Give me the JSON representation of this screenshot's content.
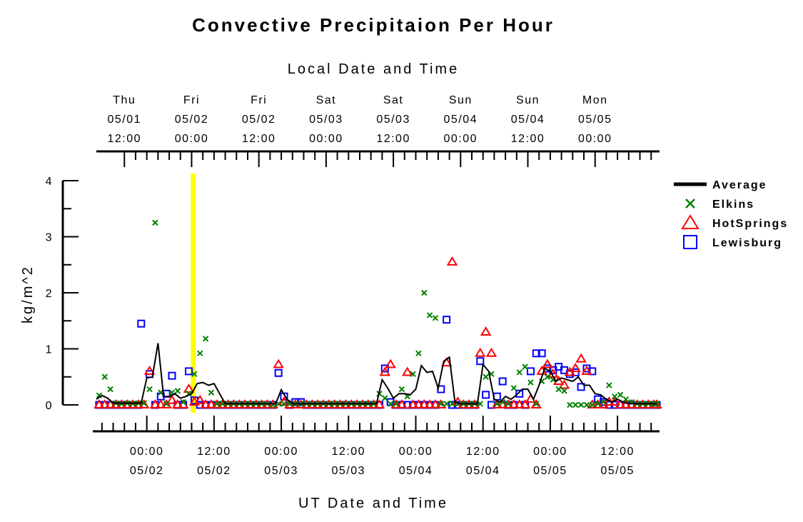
{
  "chart_data": {
    "type": "line",
    "title": "Convective Precipitaion Per Hour",
    "top_axis_title": "Local Date and Time",
    "top_ticks": [
      {
        "day": "Thu",
        "date": "05/01",
        "time": "12:00",
        "hours": -4
      },
      {
        "day": "Fri",
        "date": "05/02",
        "time": "00:00",
        "hours": 8
      },
      {
        "day": "Fri",
        "date": "05/02",
        "time": "12:00",
        "hours": 20
      },
      {
        "day": "Sat",
        "date": "05/03",
        "time": "00:00",
        "hours": 32
      },
      {
        "day": "Sat",
        "date": "05/03",
        "time": "12:00",
        "hours": 44
      },
      {
        "day": "Sun",
        "date": "05/04",
        "time": "00:00",
        "hours": 56
      },
      {
        "day": "Sun",
        "date": "05/04",
        "time": "12:00",
        "hours": 68
      },
      {
        "day": "Mon",
        "date": "05/05",
        "time": "00:00",
        "hours": 80
      }
    ],
    "bottom_axis_title": "UT Date and Time",
    "bottom_ticks": [
      {
        "time": "00:00",
        "date": "05/02",
        "hours": 0
      },
      {
        "time": "12:00",
        "date": "05/02",
        "hours": 12
      },
      {
        "time": "00:00",
        "date": "05/03",
        "hours": 24
      },
      {
        "time": "12:00",
        "date": "05/03",
        "hours": 36
      },
      {
        "time": "00:00",
        "date": "05/04",
        "hours": 48
      },
      {
        "time": "12:00",
        "date": "05/04",
        "hours": 60
      },
      {
        "time": "00:00",
        "date": "05/05",
        "hours": 72
      },
      {
        "time": "12:00",
        "date": "05/05",
        "hours": 84
      }
    ],
    "x_unit": "hours since 05/02 00:00 UT",
    "xlim": [
      -9,
      91.5
    ],
    "ylabel": "kg/m^2",
    "ylim": [
      0,
      4
    ],
    "y_ticks": [
      0,
      1,
      2,
      3,
      4
    ],
    "highlight_x": 8.3,
    "highlight_color": "#ffff00",
    "legend_position": "right",
    "series": [
      {
        "name": "Average",
        "marker": "line",
        "color": "#000000",
        "x": [
          -9,
          -8,
          -7,
          -6,
          -5,
          -4,
          -3,
          -2,
          -1,
          0,
          1,
          2,
          3,
          4,
          5,
          6,
          7,
          8,
          9,
          10,
          11,
          12,
          13,
          14,
          15,
          16,
          17,
          18,
          19,
          20,
          21,
          22,
          23,
          24,
          25,
          26,
          27,
          28,
          29,
          30,
          31,
          32,
          33,
          34,
          35,
          36,
          37,
          38,
          39,
          40,
          41,
          42,
          43,
          44,
          45,
          46,
          47,
          48,
          49,
          50,
          51,
          52,
          53,
          54,
          55,
          56,
          57,
          58,
          59,
          60,
          61,
          62,
          63,
          64,
          65,
          66,
          67,
          68,
          69,
          70,
          71,
          72,
          73,
          74,
          75,
          76,
          77,
          78,
          79,
          80,
          81,
          82,
          83,
          84,
          85,
          86,
          87,
          88,
          89,
          90,
          91
        ],
        "values": [
          0.1,
          0.17,
          0.12,
          0.03,
          0.03,
          0.03,
          0.03,
          0.03,
          0.03,
          0.48,
          0.5,
          1.1,
          0.15,
          0.15,
          0.2,
          0.12,
          0.15,
          0.2,
          0.38,
          0.4,
          0.35,
          0.38,
          0.2,
          0.02,
          0.02,
          0.02,
          0.02,
          0.02,
          0.02,
          0.02,
          0.02,
          0.02,
          0.02,
          0.27,
          0.1,
          0.02,
          0.02,
          0.02,
          0.02,
          0.02,
          0.02,
          0.02,
          0.02,
          0.02,
          0.02,
          0.02,
          0.02,
          0.02,
          0.02,
          0.02,
          0.02,
          0.45,
          0.3,
          0.12,
          0.2,
          0.2,
          0.18,
          0.28,
          0.7,
          0.58,
          0.6,
          0.3,
          0.78,
          0.85,
          0.05,
          0.02,
          0.02,
          0.02,
          0.02,
          0.72,
          0.6,
          0.1,
          0.05,
          0.15,
          0.1,
          0.18,
          0.28,
          0.28,
          0.1,
          0.35,
          0.65,
          0.6,
          0.42,
          0.48,
          0.45,
          0.42,
          0.5,
          0.35,
          0.35,
          0.2,
          0.18,
          0.1,
          0.05,
          0.1,
          0.05,
          0.02,
          0.02,
          0.02,
          0.02,
          0.02,
          0.02
        ]
      },
      {
        "name": "Elkins",
        "marker": "x",
        "color": "#008000",
        "x": [
          -8.5,
          -7.5,
          -6.5,
          -5.5,
          -4.5,
          -3.5,
          -2.5,
          -1.5,
          -0.5,
          0.5,
          1.5,
          2.5,
          3.5,
          4.5,
          5.5,
          6.5,
          7.5,
          8.5,
          9.5,
          10.5,
          11.5,
          12.5,
          13.5,
          14.5,
          15.5,
          16.5,
          17.5,
          18.5,
          19.5,
          20.5,
          21.5,
          22.5,
          23.5,
          24.5,
          25.5,
          26.5,
          27.5,
          28.5,
          29.5,
          30.5,
          31.5,
          32.5,
          33.5,
          34.5,
          35.5,
          36.5,
          37.5,
          38.5,
          39.5,
          40.5,
          41.5,
          42.5,
          43.5,
          44.5,
          45.5,
          46.5,
          47.5,
          48.5,
          49.5,
          50.5,
          51.5,
          52.5,
          53.5,
          54.5,
          55.5,
          56.5,
          57.5,
          58.5,
          59.5,
          60.5,
          61.5,
          62.5,
          63.5,
          64.5,
          65.5,
          66.5,
          67.5,
          68.5,
          69.5,
          70.5,
          71.5,
          72.5,
          73.5,
          74.5,
          75.5,
          76.5,
          77.5,
          78.5,
          79.5,
          80.5,
          81.5,
          82.5,
          83.5,
          84.5,
          85.5,
          86.5,
          87.5,
          88.5,
          89.5,
          90.5,
          91
        ],
        "values": [
          0.17,
          0.5,
          0.28,
          0.03,
          0.02,
          0.03,
          0.02,
          0.03,
          0.03,
          0.28,
          3.25,
          0.22,
          0.02,
          0.22,
          0.25,
          0.05,
          0.2,
          0.55,
          0.92,
          1.18,
          0.22,
          0.02,
          0.02,
          0.02,
          0.02,
          0.02,
          0.02,
          0.02,
          0.02,
          0.02,
          0.02,
          0.0,
          0.02,
          0.02,
          0.02,
          0.02,
          0.02,
          0.02,
          0.02,
          0.02,
          0.02,
          0.02,
          0.02,
          0.02,
          0.02,
          0.02,
          0.02,
          0.02,
          0.02,
          0.02,
          0.2,
          0.12,
          0.02,
          0.02,
          0.28,
          0.15,
          0.55,
          0.92,
          2.0,
          1.6,
          1.55,
          0.02,
          0.02,
          0.02,
          0.02,
          0.02,
          0.02,
          0.02,
          0.02,
          0.5,
          0.55,
          0.02,
          0.05,
          0.02,
          0.3,
          0.58,
          0.68,
          0.4,
          0.02,
          0.42,
          0.5,
          0.45,
          0.28,
          0.25,
          0.0,
          0.0,
          0.0,
          0.0,
          0.0,
          0.02,
          0.05,
          0.35,
          0.15,
          0.18,
          0.1,
          0.05,
          0.02,
          0.02,
          0.02,
          0.02,
          0.02
        ]
      },
      {
        "name": "HotSprings",
        "marker": "triangle",
        "color": "#ff0000",
        "x": [
          -8.5,
          -7.5,
          -6.5,
          -5.5,
          -4.5,
          -3.5,
          -2.5,
          -1.5,
          -0.5,
          0.5,
          1.5,
          2.5,
          3.5,
          4.5,
          5.5,
          6.5,
          7.5,
          8.5,
          9.5,
          10.5,
          11.5,
          12.5,
          13.5,
          14.5,
          15.5,
          16.5,
          17.5,
          18.5,
          19.5,
          20.5,
          21.5,
          22.5,
          23.5,
          24.5,
          25.5,
          26.5,
          27.5,
          28.5,
          29.5,
          30.5,
          31.5,
          32.5,
          33.5,
          34.5,
          35.5,
          36.5,
          37.5,
          38.5,
          39.5,
          40.5,
          41.5,
          42.5,
          43.5,
          44.5,
          45.5,
          46.5,
          47.5,
          48.5,
          49.5,
          50.5,
          51.5,
          52.5,
          53.5,
          54.5,
          55.5,
          56.5,
          57.5,
          58.5,
          59.5,
          60.5,
          61.5,
          62.5,
          63.5,
          64.5,
          65.5,
          66.5,
          67.5,
          68.5,
          69.5,
          70.5,
          71.5,
          72.5,
          73.5,
          74.5,
          75.5,
          76.5,
          77.5,
          78.5,
          79.5,
          80.5,
          81.5,
          82.5,
          83.5,
          84.5,
          85.5,
          86.5,
          87.5,
          88.5,
          89.5,
          90.5,
          91
        ],
        "values": [
          0.0,
          0.0,
          0.0,
          0.0,
          0.0,
          0.0,
          0.0,
          0.0,
          0.0,
          0.6,
          0.0,
          0.0,
          0.0,
          0.08,
          0.0,
          0.0,
          0.28,
          0.05,
          0.08,
          0.0,
          0.0,
          0.0,
          0.0,
          0.0,
          0.0,
          0.0,
          0.0,
          0.0,
          0.0,
          0.0,
          0.0,
          0.0,
          0.72,
          0.05,
          0.0,
          0.0,
          0.0,
          0.0,
          0.0,
          0.0,
          0.0,
          0.0,
          0.0,
          0.0,
          0.0,
          0.0,
          0.0,
          0.0,
          0.0,
          0.0,
          0.0,
          0.58,
          0.72,
          0.0,
          0.0,
          0.58,
          0.0,
          0.0,
          0.0,
          0.0,
          0.0,
          0.0,
          0.75,
          2.55,
          0.05,
          0.0,
          0.0,
          0.0,
          0.92,
          1.3,
          0.92,
          0.0,
          0.0,
          0.0,
          0.0,
          0.0,
          0.0,
          0.1,
          0.0,
          0.6,
          0.72,
          0.55,
          0.42,
          0.35,
          0.58,
          0.65,
          0.82,
          0.6,
          0.0,
          0.0,
          0.0,
          0.05,
          0.05,
          0.0,
          0.0,
          0.0,
          0.0,
          0.0,
          0.0,
          0.0,
          0.0
        ]
      },
      {
        "name": "Lewisburg",
        "marker": "square",
        "color": "#0000ff",
        "x": [
          -8.5,
          -7.5,
          -6.5,
          -5.5,
          -4.5,
          -3.5,
          -2.5,
          -1.5,
          -1,
          0.5,
          1.5,
          2.5,
          3.5,
          4.5,
          5.5,
          6.5,
          7.5,
          8.5,
          9.5,
          10.5,
          11.5,
          12.5,
          13.5,
          14.5,
          15.5,
          16.5,
          17.5,
          18.5,
          19.5,
          20.5,
          21.5,
          22.5,
          23.5,
          24.5,
          25.5,
          26.5,
          27.5,
          28.5,
          29.5,
          30.5,
          31.5,
          32.5,
          33.5,
          34.5,
          35.5,
          36.5,
          37.5,
          38.5,
          39.5,
          40.5,
          41.5,
          42.5,
          43.5,
          44.5,
          45.5,
          46.5,
          47.5,
          48.5,
          49.5,
          50.5,
          51.5,
          52.5,
          53.5,
          54.5,
          55.5,
          56.5,
          57.5,
          58.5,
          59.5,
          60.5,
          61.5,
          62.5,
          63.5,
          64.5,
          65.5,
          66.5,
          67.5,
          68.5,
          69.5,
          70.5,
          71.5,
          72.5,
          73.5,
          74.5,
          75.5,
          76.5,
          77.5,
          78.5,
          79.5,
          80.5,
          81.5,
          82.5,
          83.5,
          84.5,
          85.5,
          86.5,
          87.5,
          88.5,
          89.5,
          90.5,
          91
        ],
        "values": [
          0.0,
          0.0,
          0.0,
          0.0,
          0.0,
          0.0,
          0.0,
          0.0,
          1.45,
          0.55,
          0.0,
          0.15,
          0.2,
          0.52,
          0.0,
          0.0,
          0.6,
          0.08,
          0.0,
          0.0,
          0.0,
          0.0,
          0.0,
          0.0,
          0.0,
          0.0,
          0.0,
          0.0,
          0.0,
          0.0,
          0.0,
          0.0,
          0.57,
          0.15,
          0.0,
          0.05,
          0.05,
          0.0,
          0.0,
          0.0,
          0.0,
          0.0,
          0.0,
          0.0,
          0.0,
          0.0,
          0.0,
          0.0,
          0.0,
          0.0,
          0.0,
          0.65,
          0.05,
          0.0,
          0.0,
          0.0,
          0.0,
          0.0,
          0.0,
          0.0,
          0.0,
          0.28,
          1.52,
          0.0,
          0.0,
          0.0,
          0.0,
          0.0,
          0.78,
          0.18,
          0.0,
          0.15,
          0.42,
          0.0,
          0.0,
          0.2,
          0.0,
          0.6,
          0.92,
          0.92,
          0.65,
          0.62,
          0.68,
          0.62,
          0.55,
          0.58,
          0.32,
          0.65,
          0.6,
          0.1,
          0.05,
          0.0,
          0.0,
          0.0,
          0.0,
          0.0,
          0.0,
          0.0,
          0.0,
          0.0,
          0.0
        ]
      }
    ]
  }
}
